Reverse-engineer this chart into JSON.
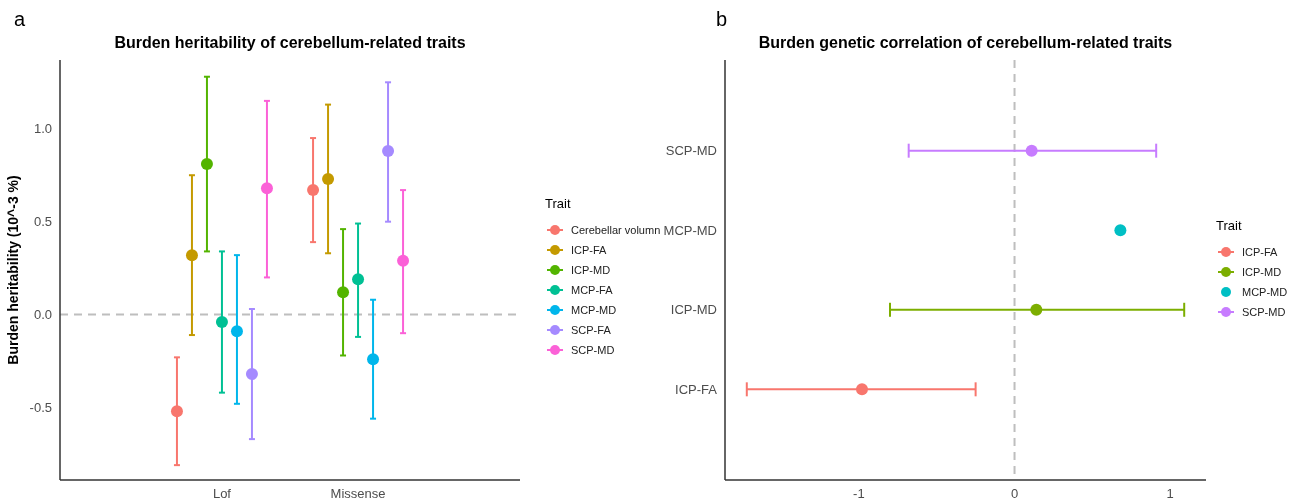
{
  "chart_data": [
    {
      "type": "scatter",
      "title": "Burden heritability of cerebellum-related traits",
      "ylabel": "Burden heritability (10^-3 %)",
      "legend_title": "Trait",
      "annotations": [
        "a"
      ],
      "categories": [
        "Lof",
        "Missense"
      ],
      "ylim": [
        -0.89,
        1.37
      ],
      "yticks": [
        {
          "value": -0.5,
          "label": "-0.5"
        },
        {
          "value": 0,
          "label": "0.0"
        },
        {
          "value": 0.5,
          "label": "0.5"
        },
        {
          "value": 1,
          "label": "1.0"
        }
      ],
      "legend": "right",
      "marker": "circle",
      "ref_lines": [
        {
          "axis": "y",
          "value": 0,
          "color": "#bebebe",
          "line_style": "dashed"
        }
      ],
      "series": [
        {
          "name": "Cerebellar volumn",
          "color": "#f8766d",
          "values": [
            -0.52,
            0.67
          ],
          "errors": [
            [
              -0.81,
              -0.23
            ],
            [
              0.39,
              0.95
            ]
          ]
        },
        {
          "name": "ICP-FA",
          "color": "#c49a00",
          "values": [
            0.32,
            0.73
          ],
          "errors": [
            [
              -0.11,
              0.75
            ],
            [
              0.33,
              1.13
            ]
          ]
        },
        {
          "name": "ICP-MD",
          "color": "#53b400",
          "values": [
            0.81,
            0.12
          ],
          "errors": [
            [
              0.34,
              1.28
            ],
            [
              -0.22,
              0.46
            ]
          ]
        },
        {
          "name": "MCP-FA",
          "color": "#00c094",
          "values": [
            -0.04,
            0.19
          ],
          "errors": [
            [
              -0.42,
              0.34
            ],
            [
              -0.12,
              0.49
            ]
          ]
        },
        {
          "name": "MCP-MD",
          "color": "#00b6eb",
          "values": [
            -0.09,
            -0.24
          ],
          "errors": [
            [
              -0.48,
              0.32
            ],
            [
              -0.56,
              0.08
            ]
          ]
        },
        {
          "name": "SCP-FA",
          "color": "#a58aff",
          "values": [
            -0.32,
            0.88
          ],
          "errors": [
            [
              -0.67,
              0.03
            ],
            [
              0.5,
              1.25
            ]
          ]
        },
        {
          "name": "SCP-MD",
          "color": "#fb61d7",
          "values": [
            0.68,
            0.29
          ],
          "errors": [
            [
              0.2,
              1.15
            ],
            [
              -0.1,
              0.67
            ]
          ]
        }
      ]
    },
    {
      "type": "scatter",
      "orientation": "horizontal",
      "title": "Burden genetic correlation of cerebellum-related traits",
      "legend_title": "Trait",
      "annotations": [
        "b"
      ],
      "categories": [
        "SCP-MD",
        "MCP-MD",
        "ICP-MD",
        "ICP-FA"
      ],
      "xlim": [
        -1.86,
        1.23
      ],
      "xticks": [
        -1,
        0,
        1
      ],
      "legend": "right",
      "marker": "circle",
      "ref_lines": [
        {
          "axis": "x",
          "value": 0,
          "color": "#bebebe",
          "line_style": "dashed"
        }
      ],
      "series": [
        {
          "name": "ICP-FA",
          "color": "#f8766d",
          "values": [
            null,
            null,
            null,
            -0.98
          ],
          "errors": [
            null,
            null,
            null,
            [
              -1.72,
              -0.25
            ]
          ]
        },
        {
          "name": "ICP-MD",
          "color": "#7cae00",
          "values": [
            null,
            null,
            0.14,
            null
          ],
          "errors": [
            null,
            null,
            [
              -0.8,
              1.09
            ],
            null
          ]
        },
        {
          "name": "MCP-MD",
          "color": "#00bfc4",
          "values": [
            null,
            0.68,
            null,
            null
          ]
        },
        {
          "name": "SCP-MD",
          "color": "#c77cff",
          "values": [
            0.11,
            null,
            null,
            null
          ],
          "errors": [
            [
              -0.68,
              0.91
            ],
            null,
            null,
            null
          ]
        }
      ]
    }
  ]
}
